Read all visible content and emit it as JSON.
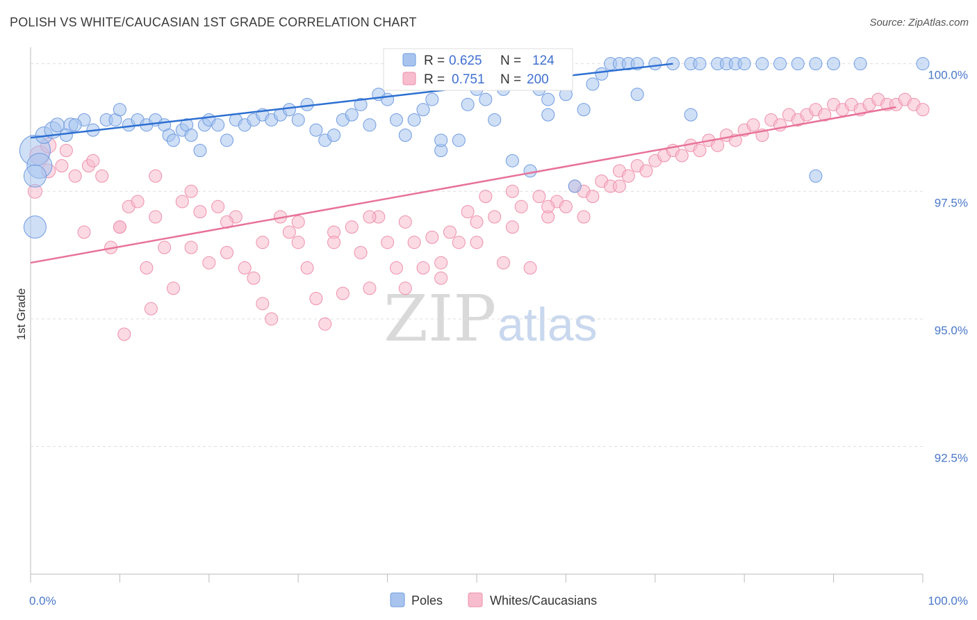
{
  "title": "POLISH VS WHITE/CAUCASIAN 1ST GRADE CORRELATION CHART",
  "source": "Source: ZipAtlas.com",
  "watermark": {
    "zip": "ZIP",
    "atlas": "atlas"
  },
  "legend": {
    "r_label": "R =",
    "n_label": "N =",
    "rows": [
      {
        "r": "0.625",
        "n": "124",
        "color": "#a8c4ee"
      },
      {
        "r": "0.751",
        "n": "200",
        "color": "#f7bccd"
      }
    ]
  },
  "bottom_legend": [
    "Poles",
    "Whites/Caucasians"
  ],
  "colors": {
    "poles_fill": "#a8c4ee",
    "poles_stroke": "#6f9be0",
    "poles_line": "#2c6fd1",
    "whites_fill": "#f7bccd",
    "whites_stroke": "#ee8fab",
    "whites_line": "#e8729a",
    "axis_text": "#4a78c8",
    "grid": "#dddddd"
  },
  "chart_data": {
    "type": "scatter",
    "title": "POLISH VS WHITE/CAUCASIAN 1ST GRADE CORRELATION CHART",
    "xlabel": "",
    "ylabel": "1st Grade",
    "xlim": [
      0,
      100
    ],
    "ylim": [
      90.0,
      100.2
    ],
    "x_tick_labels": [
      "0.0%",
      "100.0%"
    ],
    "y_ticks": [
      92.5,
      95.0,
      97.5,
      100.0
    ],
    "y_tick_labels": [
      "92.5%",
      "95.0%",
      "97.5%",
      "100.0%"
    ],
    "grid": true,
    "legend_position": "top-center",
    "series": [
      {
        "name": "Poles",
        "trend": {
          "x": [
            0,
            72
          ],
          "y": [
            98.55,
            100.0
          ]
        },
        "points": [
          [
            0.5,
            98.3,
            22
          ],
          [
            1,
            98.0,
            18
          ],
          [
            0.5,
            97.8,
            16
          ],
          [
            0.5,
            96.8,
            16
          ],
          [
            1.5,
            98.6,
            12
          ],
          [
            2.5,
            98.7,
            12
          ],
          [
            3,
            98.8,
            10
          ],
          [
            4.5,
            98.8,
            10
          ],
          [
            4,
            98.6,
            9
          ],
          [
            6,
            98.9,
            9
          ],
          [
            5,
            98.8,
            9
          ],
          [
            7,
            98.7,
            9
          ],
          [
            8.5,
            98.9,
            9
          ],
          [
            9.5,
            98.9,
            9
          ],
          [
            10,
            99.1,
            9
          ],
          [
            11,
            98.8,
            9
          ],
          [
            12,
            98.9,
            9
          ],
          [
            13,
            98.8,
            9
          ],
          [
            14,
            98.9,
            9
          ],
          [
            15,
            98.8,
            9
          ],
          [
            15.5,
            98.6,
            9
          ],
          [
            16,
            98.5,
            9
          ],
          [
            17,
            98.7,
            9
          ],
          [
            17.5,
            98.8,
            9
          ],
          [
            18,
            98.6,
            9
          ],
          [
            19,
            98.3,
            9
          ],
          [
            19.5,
            98.8,
            9
          ],
          [
            20,
            98.9,
            9
          ],
          [
            21,
            98.8,
            9
          ],
          [
            22,
            98.5,
            9
          ],
          [
            23,
            98.9,
            9
          ],
          [
            24,
            98.8,
            9
          ],
          [
            25,
            98.9,
            9
          ],
          [
            26,
            99.0,
            9
          ],
          [
            27,
            98.9,
            9
          ],
          [
            28,
            99.0,
            9
          ],
          [
            29,
            99.1,
            9
          ],
          [
            30,
            98.9,
            9
          ],
          [
            31,
            99.2,
            9
          ],
          [
            32,
            98.7,
            9
          ],
          [
            33,
            98.5,
            9
          ],
          [
            34,
            98.6,
            9
          ],
          [
            35,
            98.9,
            9
          ],
          [
            36,
            99.0,
            9
          ],
          [
            37,
            99.2,
            9
          ],
          [
            38,
            98.8,
            9
          ],
          [
            39,
            99.4,
            9
          ],
          [
            40,
            99.3,
            9
          ],
          [
            41,
            98.9,
            9
          ],
          [
            42,
            98.6,
            9
          ],
          [
            43,
            98.9,
            9
          ],
          [
            44,
            99.1,
            9
          ],
          [
            45,
            99.3,
            9
          ],
          [
            46,
            98.3,
            9
          ],
          [
            47,
            99.6,
            9
          ],
          [
            48,
            98.5,
            9
          ],
          [
            49,
            99.2,
            9
          ],
          [
            50,
            99.5,
            9
          ],
          [
            51,
            99.3,
            9
          ],
          [
            52,
            98.9,
            9
          ],
          [
            53,
            99.5,
            9
          ],
          [
            54,
            98.1,
            9
          ],
          [
            55,
            99.8,
            9
          ],
          [
            56,
            97.9,
            9
          ],
          [
            57,
            99.5,
            9
          ],
          [
            58,
            99.3,
            9
          ],
          [
            59,
            99.9,
            9
          ],
          [
            60,
            99.4,
            9
          ],
          [
            61,
            97.6,
            9
          ],
          [
            62,
            99.1,
            9
          ],
          [
            63,
            99.6,
            9
          ],
          [
            64,
            99.8,
            9
          ],
          [
            65,
            100,
            9
          ],
          [
            66,
            100,
            9
          ],
          [
            67,
            100,
            9
          ],
          [
            68,
            100,
            9
          ],
          [
            70,
            100,
            9
          ],
          [
            72,
            100,
            9
          ],
          [
            74,
            100,
            9
          ],
          [
            75,
            100,
            9
          ],
          [
            77,
            100,
            9
          ],
          [
            78,
            100,
            9
          ],
          [
            79,
            100,
            9
          ],
          [
            80,
            100,
            9
          ],
          [
            82,
            100,
            9
          ],
          [
            84,
            100,
            9
          ],
          [
            86,
            100,
            9
          ],
          [
            88,
            100,
            9
          ],
          [
            90,
            100,
            9
          ],
          [
            93,
            100,
            9
          ],
          [
            100,
            100,
            9
          ],
          [
            88,
            97.8,
            9
          ],
          [
            74,
            99.0,
            9
          ],
          [
            68,
            99.4,
            9
          ],
          [
            58,
            99.0,
            9
          ],
          [
            46,
            98.5,
            9
          ]
        ]
      },
      {
        "name": "Whites/Caucasians",
        "trend": {
          "x": [
            0,
            97
          ],
          "y": [
            96.1,
            99.15
          ]
        },
        "points": [
          [
            1,
            98.2,
            14
          ],
          [
            2,
            98.4,
            11
          ],
          [
            0.5,
            97.5,
            10
          ],
          [
            2,
            97.9,
            10
          ],
          [
            3.5,
            98.0,
            9
          ],
          [
            4,
            98.3,
            9
          ],
          [
            5,
            97.8,
            9
          ],
          [
            6,
            96.7,
            9
          ],
          [
            6.5,
            98.0,
            9
          ],
          [
            7,
            98.1,
            9
          ],
          [
            8,
            97.8,
            9
          ],
          [
            9,
            96.4,
            9
          ],
          [
            10,
            96.8,
            9
          ],
          [
            10.5,
            94.7,
            9
          ],
          [
            11,
            97.2,
            9
          ],
          [
            12,
            97.3,
            9
          ],
          [
            13,
            96.0,
            9
          ],
          [
            13.5,
            95.2,
            9
          ],
          [
            14,
            97.8,
            9
          ],
          [
            15,
            96.4,
            9
          ],
          [
            16,
            95.6,
            9
          ],
          [
            17,
            97.3,
            9
          ],
          [
            18,
            96.4,
            9
          ],
          [
            19,
            97.1,
            9
          ],
          [
            20,
            96.1,
            9
          ],
          [
            21,
            97.2,
            9
          ],
          [
            22,
            96.3,
            9
          ],
          [
            23,
            97.0,
            9
          ],
          [
            24,
            96.0,
            9
          ],
          [
            25,
            95.8,
            9
          ],
          [
            26,
            95.3,
            9
          ],
          [
            27,
            95.0,
            9
          ],
          [
            28,
            97.0,
            9
          ],
          [
            29,
            96.7,
            9
          ],
          [
            30,
            96.5,
            9
          ],
          [
            31,
            96.0,
            9
          ],
          [
            32,
            95.4,
            9
          ],
          [
            33,
            94.9,
            9
          ],
          [
            34,
            96.7,
            9
          ],
          [
            35,
            95.5,
            9
          ],
          [
            36,
            96.8,
            9
          ],
          [
            37,
            96.3,
            9
          ],
          [
            38,
            95.6,
            9
          ],
          [
            39,
            97.0,
            9
          ],
          [
            40,
            96.5,
            9
          ],
          [
            41,
            96.0,
            9
          ],
          [
            42,
            95.6,
            9
          ],
          [
            43,
            96.5,
            9
          ],
          [
            44,
            96.0,
            9
          ],
          [
            45,
            96.6,
            9
          ],
          [
            46,
            95.8,
            9
          ],
          [
            47,
            96.7,
            9
          ],
          [
            48,
            96.5,
            9
          ],
          [
            49,
            97.1,
            9
          ],
          [
            50,
            96.9,
            9
          ],
          [
            51,
            97.4,
            9
          ],
          [
            52,
            97.0,
            9
          ],
          [
            53,
            96.1,
            9
          ],
          [
            54,
            97.5,
            9
          ],
          [
            55,
            97.2,
            9
          ],
          [
            56,
            96.0,
            9
          ],
          [
            57,
            97.4,
            9
          ],
          [
            58,
            97.0,
            9
          ],
          [
            59,
            97.3,
            9
          ],
          [
            60,
            97.2,
            9
          ],
          [
            61,
            97.6,
            9
          ],
          [
            62,
            97.5,
            9
          ],
          [
            63,
            97.4,
            9
          ],
          [
            64,
            97.7,
            9
          ],
          [
            65,
            97.6,
            9
          ],
          [
            66,
            97.9,
            9
          ],
          [
            67,
            97.8,
            9
          ],
          [
            68,
            98.0,
            9
          ],
          [
            69,
            97.9,
            9
          ],
          [
            70,
            98.1,
            9
          ],
          [
            71,
            98.2,
            9
          ],
          [
            72,
            98.3,
            9
          ],
          [
            73,
            98.2,
            9
          ],
          [
            74,
            98.4,
            9
          ],
          [
            75,
            98.3,
            9
          ],
          [
            76,
            98.5,
            9
          ],
          [
            77,
            98.4,
            9
          ],
          [
            78,
            98.6,
            9
          ],
          [
            79,
            98.5,
            9
          ],
          [
            80,
            98.7,
            9
          ],
          [
            81,
            98.8,
            9
          ],
          [
            82,
            98.6,
            9
          ],
          [
            83,
            98.9,
            9
          ],
          [
            84,
            98.8,
            9
          ],
          [
            85,
            99.0,
            9
          ],
          [
            86,
            98.9,
            9
          ],
          [
            87,
            99.0,
            9
          ],
          [
            88,
            99.1,
            9
          ],
          [
            89,
            99.0,
            9
          ],
          [
            90,
            99.2,
            9
          ],
          [
            91,
            99.1,
            9
          ],
          [
            92,
            99.2,
            9
          ],
          [
            93,
            99.1,
            9
          ],
          [
            94,
            99.2,
            9
          ],
          [
            95,
            99.3,
            9
          ],
          [
            96,
            99.2,
            9
          ],
          [
            97,
            99.2,
            9
          ],
          [
            98,
            99.3,
            9
          ],
          [
            99,
            99.2,
            9
          ],
          [
            100,
            99.1,
            9
          ],
          [
            66,
            97.6,
            9
          ],
          [
            62,
            97.0,
            9
          ],
          [
            58,
            97.2,
            9
          ],
          [
            54,
            96.8,
            9
          ],
          [
            50,
            96.5,
            9
          ],
          [
            46,
            96.1,
            9
          ],
          [
            42,
            96.9,
            9
          ],
          [
            38,
            97.0,
            9
          ],
          [
            34,
            96.5,
            9
          ],
          [
            30,
            96.9,
            9
          ],
          [
            26,
            96.5,
            9
          ],
          [
            22,
            96.9,
            9
          ],
          [
            18,
            97.5,
            9
          ],
          [
            14,
            97.0,
            9
          ],
          [
            10,
            96.8,
            9
          ]
        ]
      }
    ]
  }
}
